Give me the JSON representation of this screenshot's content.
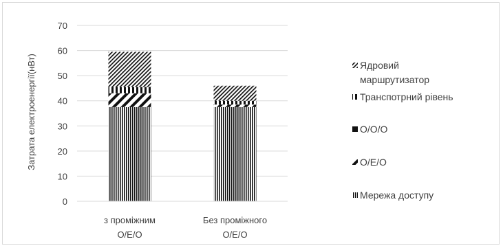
{
  "chart_data": {
    "type": "bar",
    "stacked": true,
    "categories": [
      [
        "з проміжним",
        "О/Е/О"
      ],
      [
        "Без проміжного",
        "О/Е/О"
      ]
    ],
    "series": [
      {
        "name": "Мережа доступу",
        "values": [
          37.5,
          37.5
        ],
        "pattern": "vertical-dense"
      },
      {
        "name": "О/Е/О",
        "values": [
          5.5,
          1.0
        ],
        "pattern": "diagonal-backslash"
      },
      {
        "name": "О/О/О",
        "values": [
          0,
          0
        ],
        "pattern": "solid"
      },
      {
        "name": "Транспотрний рівень",
        "values": [
          2.5,
          1.5
        ],
        "pattern": "vertical-sparse"
      },
      {
        "name": [
          "Ядровий",
          "маршрутизатор"
        ],
        "values": [
          14.0,
          6.0
        ],
        "pattern": "diagonal-backslash-fine"
      }
    ],
    "ylabel": "Затрата електроенергії(нВт)",
    "ylim": [
      0,
      70
    ],
    "yticks": [
      0,
      10,
      20,
      30,
      40,
      50,
      60,
      70
    ],
    "grid": true,
    "legend_position": "right"
  }
}
